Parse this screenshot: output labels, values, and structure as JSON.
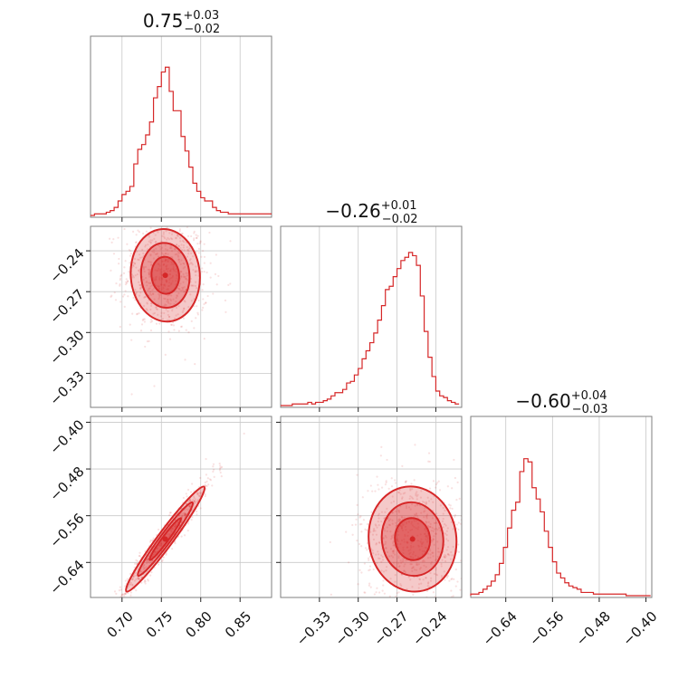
{
  "colors": {
    "accent": "#d62728",
    "grid": "#c8c8c8",
    "frame": "#7f7f7f"
  },
  "chart_data": [
    {
      "type": "histogram",
      "panel": "p1-marginal",
      "title": {
        "median": "0.75",
        "plus": "+0.03",
        "minus": "−0.02"
      },
      "xlim": [
        0.66,
        0.89
      ],
      "ylim": [
        0,
        1
      ],
      "grid": true,
      "bins": [
        0.66,
        0.665,
        0.67,
        0.675,
        0.68,
        0.685,
        0.69,
        0.695,
        0.7,
        0.705,
        0.71,
        0.715,
        0.72,
        0.725,
        0.73,
        0.735,
        0.74,
        0.745,
        0.75,
        0.755,
        0.76,
        0.765,
        0.77,
        0.775,
        0.78,
        0.785,
        0.79,
        0.795,
        0.8,
        0.805,
        0.81,
        0.815,
        0.82,
        0.825,
        0.83,
        0.835,
        0.84,
        0.845,
        0.85,
        0.855,
        0.86,
        0.865,
        0.87,
        0.875,
        0.88,
        0.885,
        0.89
      ],
      "values": [
        0,
        0.01,
        0.01,
        0.01,
        0.02,
        0.03,
        0.05,
        0.09,
        0.13,
        0.15,
        0.18,
        0.32,
        0.41,
        0.44,
        0.5,
        0.58,
        0.73,
        0.8,
        0.89,
        0.92,
        0.77,
        0.65,
        0.65,
        0.49,
        0.4,
        0.3,
        0.2,
        0.15,
        0.11,
        0.09,
        0.09,
        0.05,
        0.03,
        0.02,
        0.02,
        0.01,
        0.01,
        0.01,
        0.01,
        0.01,
        0.01,
        0.01,
        0.01,
        0.01,
        0.01,
        0.01
      ]
    },
    {
      "type": "histogram",
      "panel": "p2-marginal",
      "title": {
        "median": "−0.26",
        "plus": "+0.01",
        "minus": "−0.02"
      },
      "xlim": [
        -0.36,
        -0.22
      ],
      "ylim": [
        0,
        1
      ],
      "grid": true,
      "bins": [
        -0.36,
        -0.357,
        -0.354,
        -0.351,
        -0.348,
        -0.345,
        -0.342,
        -0.339,
        -0.336,
        -0.333,
        -0.33,
        -0.327,
        -0.324,
        -0.321,
        -0.318,
        -0.315,
        -0.312,
        -0.309,
        -0.306,
        -0.303,
        -0.3,
        -0.297,
        -0.294,
        -0.291,
        -0.288,
        -0.285,
        -0.282,
        -0.279,
        -0.276,
        -0.273,
        -0.27,
        -0.267,
        -0.264,
        -0.261,
        -0.258,
        -0.255,
        -0.252,
        -0.249,
        -0.246,
        -0.243,
        -0.24,
        -0.237,
        -0.234,
        -0.231,
        -0.228,
        -0.225,
        -0.222
      ],
      "values": [
        0,
        0,
        0,
        0.01,
        0.01,
        0.01,
        0.01,
        0.02,
        0.01,
        0.02,
        0.02,
        0.03,
        0.04,
        0.06,
        0.08,
        0.08,
        0.1,
        0.14,
        0.15,
        0.19,
        0.23,
        0.29,
        0.34,
        0.39,
        0.45,
        0.53,
        0.62,
        0.72,
        0.74,
        0.8,
        0.85,
        0.9,
        0.92,
        0.95,
        0.93,
        0.87,
        0.68,
        0.46,
        0.3,
        0.18,
        0.09,
        0.06,
        0.05,
        0.03,
        0.02,
        0.01
      ]
    },
    {
      "type": "histogram",
      "panel": "p3-marginal",
      "title": {
        "median": "−0.60",
        "plus": "+0.04",
        "minus": "−0.03"
      },
      "xlim": [
        -0.7,
        -0.39
      ],
      "ylim": [
        0,
        1
      ],
      "grid": true,
      "bins": [
        -0.7,
        -0.693,
        -0.686,
        -0.679,
        -0.672,
        -0.665,
        -0.658,
        -0.651,
        -0.644,
        -0.637,
        -0.63,
        -0.623,
        -0.616,
        -0.609,
        -0.602,
        -0.595,
        -0.588,
        -0.581,
        -0.574,
        -0.567,
        -0.56,
        -0.553,
        -0.546,
        -0.539,
        -0.532,
        -0.525,
        -0.518,
        -0.511,
        -0.504,
        -0.497,
        -0.49,
        -0.483,
        -0.476,
        -0.469,
        -0.462,
        -0.455,
        -0.448,
        -0.441,
        -0.434,
        -0.427,
        -0.42,
        -0.413,
        -0.406,
        -0.399,
        -0.392
      ],
      "values": [
        0.01,
        0.01,
        0.02,
        0.04,
        0.06,
        0.09,
        0.13,
        0.2,
        0.3,
        0.42,
        0.53,
        0.58,
        0.77,
        0.85,
        0.83,
        0.67,
        0.6,
        0.52,
        0.4,
        0.3,
        0.21,
        0.14,
        0.11,
        0.08,
        0.06,
        0.05,
        0.04,
        0.02,
        0.02,
        0.02,
        0.01,
        0.01,
        0.01,
        0.01,
        0.01,
        0.01,
        0.01,
        0.01,
        0,
        0,
        0,
        0,
        0,
        0
      ]
    },
    {
      "type": "scatter",
      "panel": "p1-vs-p2",
      "xlim": [
        0.66,
        0.89
      ],
      "ylim": [
        -0.355,
        -0.222
      ],
      "grid": true,
      "center": [
        0.755,
        -0.258
      ],
      "spread": [
        0.022,
        0.017
      ],
      "correlation": -0.05,
      "contour_levels": [
        "inner",
        "middle",
        "outer"
      ]
    },
    {
      "type": "scatter",
      "panel": "p1-vs-p3",
      "xlim": [
        0.66,
        0.89
      ],
      "ylim": [
        -0.7,
        -0.39
      ],
      "grid": true,
      "center": [
        0.755,
        -0.6
      ],
      "spread": [
        0.025,
        0.045
      ],
      "correlation": 0.97,
      "contour_levels": [
        "inner",
        "middle",
        "outer"
      ]
    },
    {
      "type": "scatter",
      "panel": "p2-vs-p3",
      "xlim": [
        -0.36,
        -0.22
      ],
      "ylim": [
        -0.7,
        -0.39
      ],
      "grid": true,
      "center": [
        -0.258,
        -0.6
      ],
      "spread": [
        0.017,
        0.045
      ],
      "correlation": -0.05,
      "contour_levels": [
        "inner",
        "middle",
        "outer"
      ]
    }
  ],
  "ticks": {
    "p1": [
      {
        "value": 0.7,
        "label": "0.70"
      },
      {
        "value": 0.75,
        "label": "0.75"
      },
      {
        "value": 0.8,
        "label": "0.80"
      },
      {
        "value": 0.85,
        "label": "0.85"
      }
    ],
    "p2": [
      {
        "value": -0.33,
        "label": "−0.33"
      },
      {
        "value": -0.3,
        "label": "−0.30"
      },
      {
        "value": -0.27,
        "label": "−0.27"
      },
      {
        "value": -0.24,
        "label": "−0.24"
      }
    ],
    "p3": [
      {
        "value": -0.64,
        "label": "−0.64"
      },
      {
        "value": -0.56,
        "label": "−0.56"
      },
      {
        "value": -0.48,
        "label": "−0.48"
      },
      {
        "value": -0.4,
        "label": "−0.40"
      }
    ]
  }
}
